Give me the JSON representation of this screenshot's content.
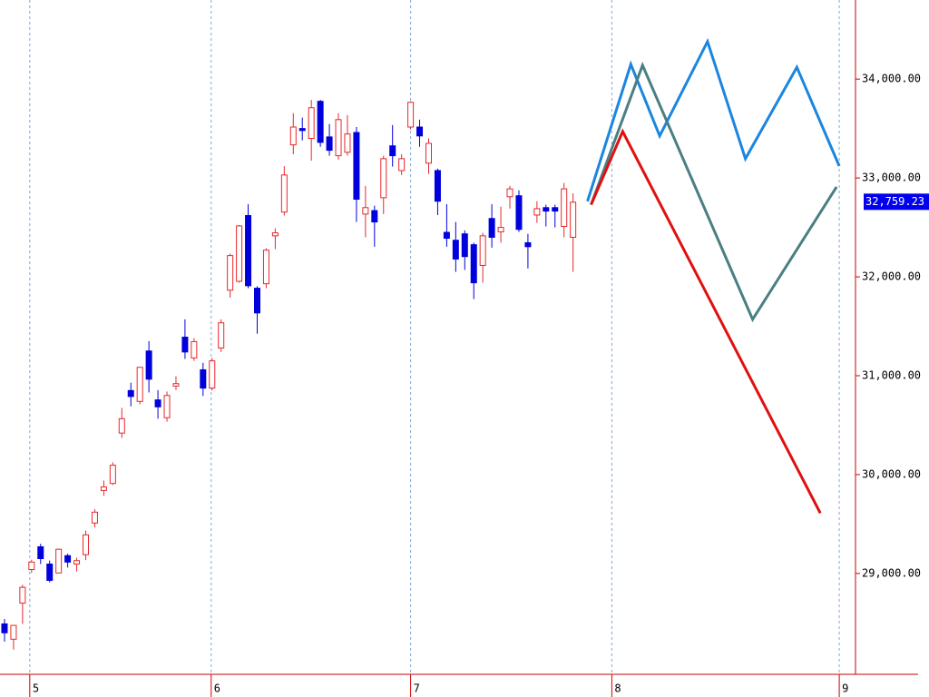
{
  "chart_data": {
    "type": "candlestick",
    "x": [
      0,
      1,
      2,
      3,
      4,
      5,
      6,
      7,
      8,
      9,
      10,
      11,
      12,
      13,
      14,
      15,
      16,
      17,
      18,
      19,
      20,
      21,
      22,
      23,
      24,
      25,
      26,
      27,
      28,
      29,
      30,
      31,
      32,
      33,
      34,
      35,
      36,
      37,
      38,
      39,
      40,
      41,
      42,
      43,
      44,
      45,
      46,
      47,
      48,
      49,
      50,
      51,
      52,
      53,
      54,
      55,
      56,
      57,
      58,
      59,
      60,
      61,
      62,
      63
    ],
    "open": [
      28490,
      28335,
      28700,
      29040,
      29270,
      29095,
      29005,
      29180,
      29095,
      29190,
      29510,
      29840,
      29910,
      30420,
      30850,
      30740,
      31250,
      30755,
      30575,
      30895,
      31390,
      31180,
      31060,
      30875,
      31280,
      31865,
      31955,
      32620,
      31885,
      31930,
      32415,
      32655,
      33335,
      33500,
      33400,
      33775,
      33415,
      33225,
      33260,
      33460,
      32635,
      32670,
      32800,
      33325,
      33075,
      33515,
      33515,
      33150,
      33075,
      32450,
      32370,
      32435,
      32325,
      32115,
      32590,
      32455,
      32810,
      32820,
      32345,
      32625,
      32700,
      32700,
      32510,
      32400
    ],
    "high": [
      28540,
      28475,
      28885,
      29140,
      29300,
      29130,
      29250,
      29200,
      29160,
      29435,
      29650,
      29940,
      30125,
      30675,
      30930,
      31085,
      31350,
      30855,
      30840,
      30995,
      31570,
      31380,
      31130,
      31180,
      31570,
      32235,
      32525,
      32735,
      31905,
      32290,
      32490,
      33120,
      33655,
      33610,
      33790,
      33790,
      33545,
      33655,
      33635,
      33515,
      32920,
      32720,
      33225,
      33535,
      33240,
      33775,
      33590,
      33400,
      33095,
      32735,
      32555,
      32470,
      32345,
      32445,
      32735,
      32710,
      32920,
      32875,
      32435,
      32765,
      32730,
      32730,
      32950,
      32845
    ],
    "low": [
      28310,
      28230,
      28490,
      29005,
      29095,
      28910,
      29005,
      29060,
      29020,
      29135,
      29465,
      29785,
      29895,
      30370,
      30690,
      30710,
      30830,
      30565,
      30535,
      30855,
      31170,
      31150,
      30795,
      30850,
      31240,
      31790,
      31940,
      31885,
      31425,
      31885,
      32280,
      32620,
      33240,
      33380,
      33175,
      33315,
      33225,
      33185,
      33225,
      32555,
      32400,
      32305,
      32635,
      33115,
      33030,
      33490,
      33315,
      33040,
      32625,
      32305,
      32050,
      32070,
      31775,
      31940,
      32295,
      32345,
      32690,
      32455,
      32085,
      32545,
      32510,
      32500,
      32400,
      32050
    ],
    "close": [
      28400,
      28475,
      28860,
      29115,
      29150,
      28930,
      29245,
      29115,
      29130,
      29390,
      29620,
      29875,
      30095,
      30565,
      30790,
      31085,
      30965,
      30685,
      30800,
      30920,
      31240,
      31345,
      30875,
      31150,
      31535,
      32215,
      32515,
      31910,
      31635,
      32270,
      32445,
      33030,
      33515,
      33480,
      33710,
      33360,
      33280,
      33590,
      33445,
      32785,
      32700,
      32555,
      33195,
      33225,
      33195,
      33765,
      33425,
      33350,
      32765,
      32390,
      32180,
      32205,
      31940,
      32415,
      32400,
      32500,
      32890,
      32480,
      32305,
      32690,
      32665,
      32665,
      32890,
      32755
    ],
    "up_color": "#e8282b",
    "down_color": "#0000dd",
    "overlays": [
      {
        "color": "#1a86e0",
        "x": [
          64.6,
          69.4,
          72.6,
          77.9,
          82.1,
          87.8,
          92.5
        ],
        "values": [
          32764,
          34150,
          33425,
          34380,
          33195,
          34120,
          33120
        ]
      },
      {
        "color": "#4a7f82",
        "x": [
          65.0,
          70.7,
          82.9,
          92.2
        ],
        "values": [
          32730,
          34140,
          31570,
          32910
        ]
      },
      {
        "color": "#e01010",
        "x": [
          65.0,
          68.5,
          90.4
        ],
        "values": [
          32730,
          33470,
          29610
        ]
      }
    ],
    "last_price": {
      "value": 32759.23,
      "label": "32,759.23"
    },
    "xlim": [
      -0.5,
      94.3
    ],
    "ylim": [
      27980,
      34800
    ],
    "xticks": [
      {
        "value": 2.8,
        "label": "5"
      },
      {
        "value": 22.9,
        "label": "6"
      },
      {
        "value": 45.0,
        "label": "7"
      },
      {
        "value": 67.3,
        "label": "8"
      },
      {
        "value": 92.5,
        "label": "9"
      }
    ],
    "yticks": [
      {
        "value": 29000,
        "label": "29,000.00"
      },
      {
        "value": 30000,
        "label": "30,000.00"
      },
      {
        "value": 31000,
        "label": "31,000.00"
      },
      {
        "value": 32000,
        "label": "32,000.00"
      },
      {
        "value": 33000,
        "label": "33,000.00"
      },
      {
        "value": 34000,
        "label": "34,000.00"
      }
    ],
    "grid_x": true
  }
}
